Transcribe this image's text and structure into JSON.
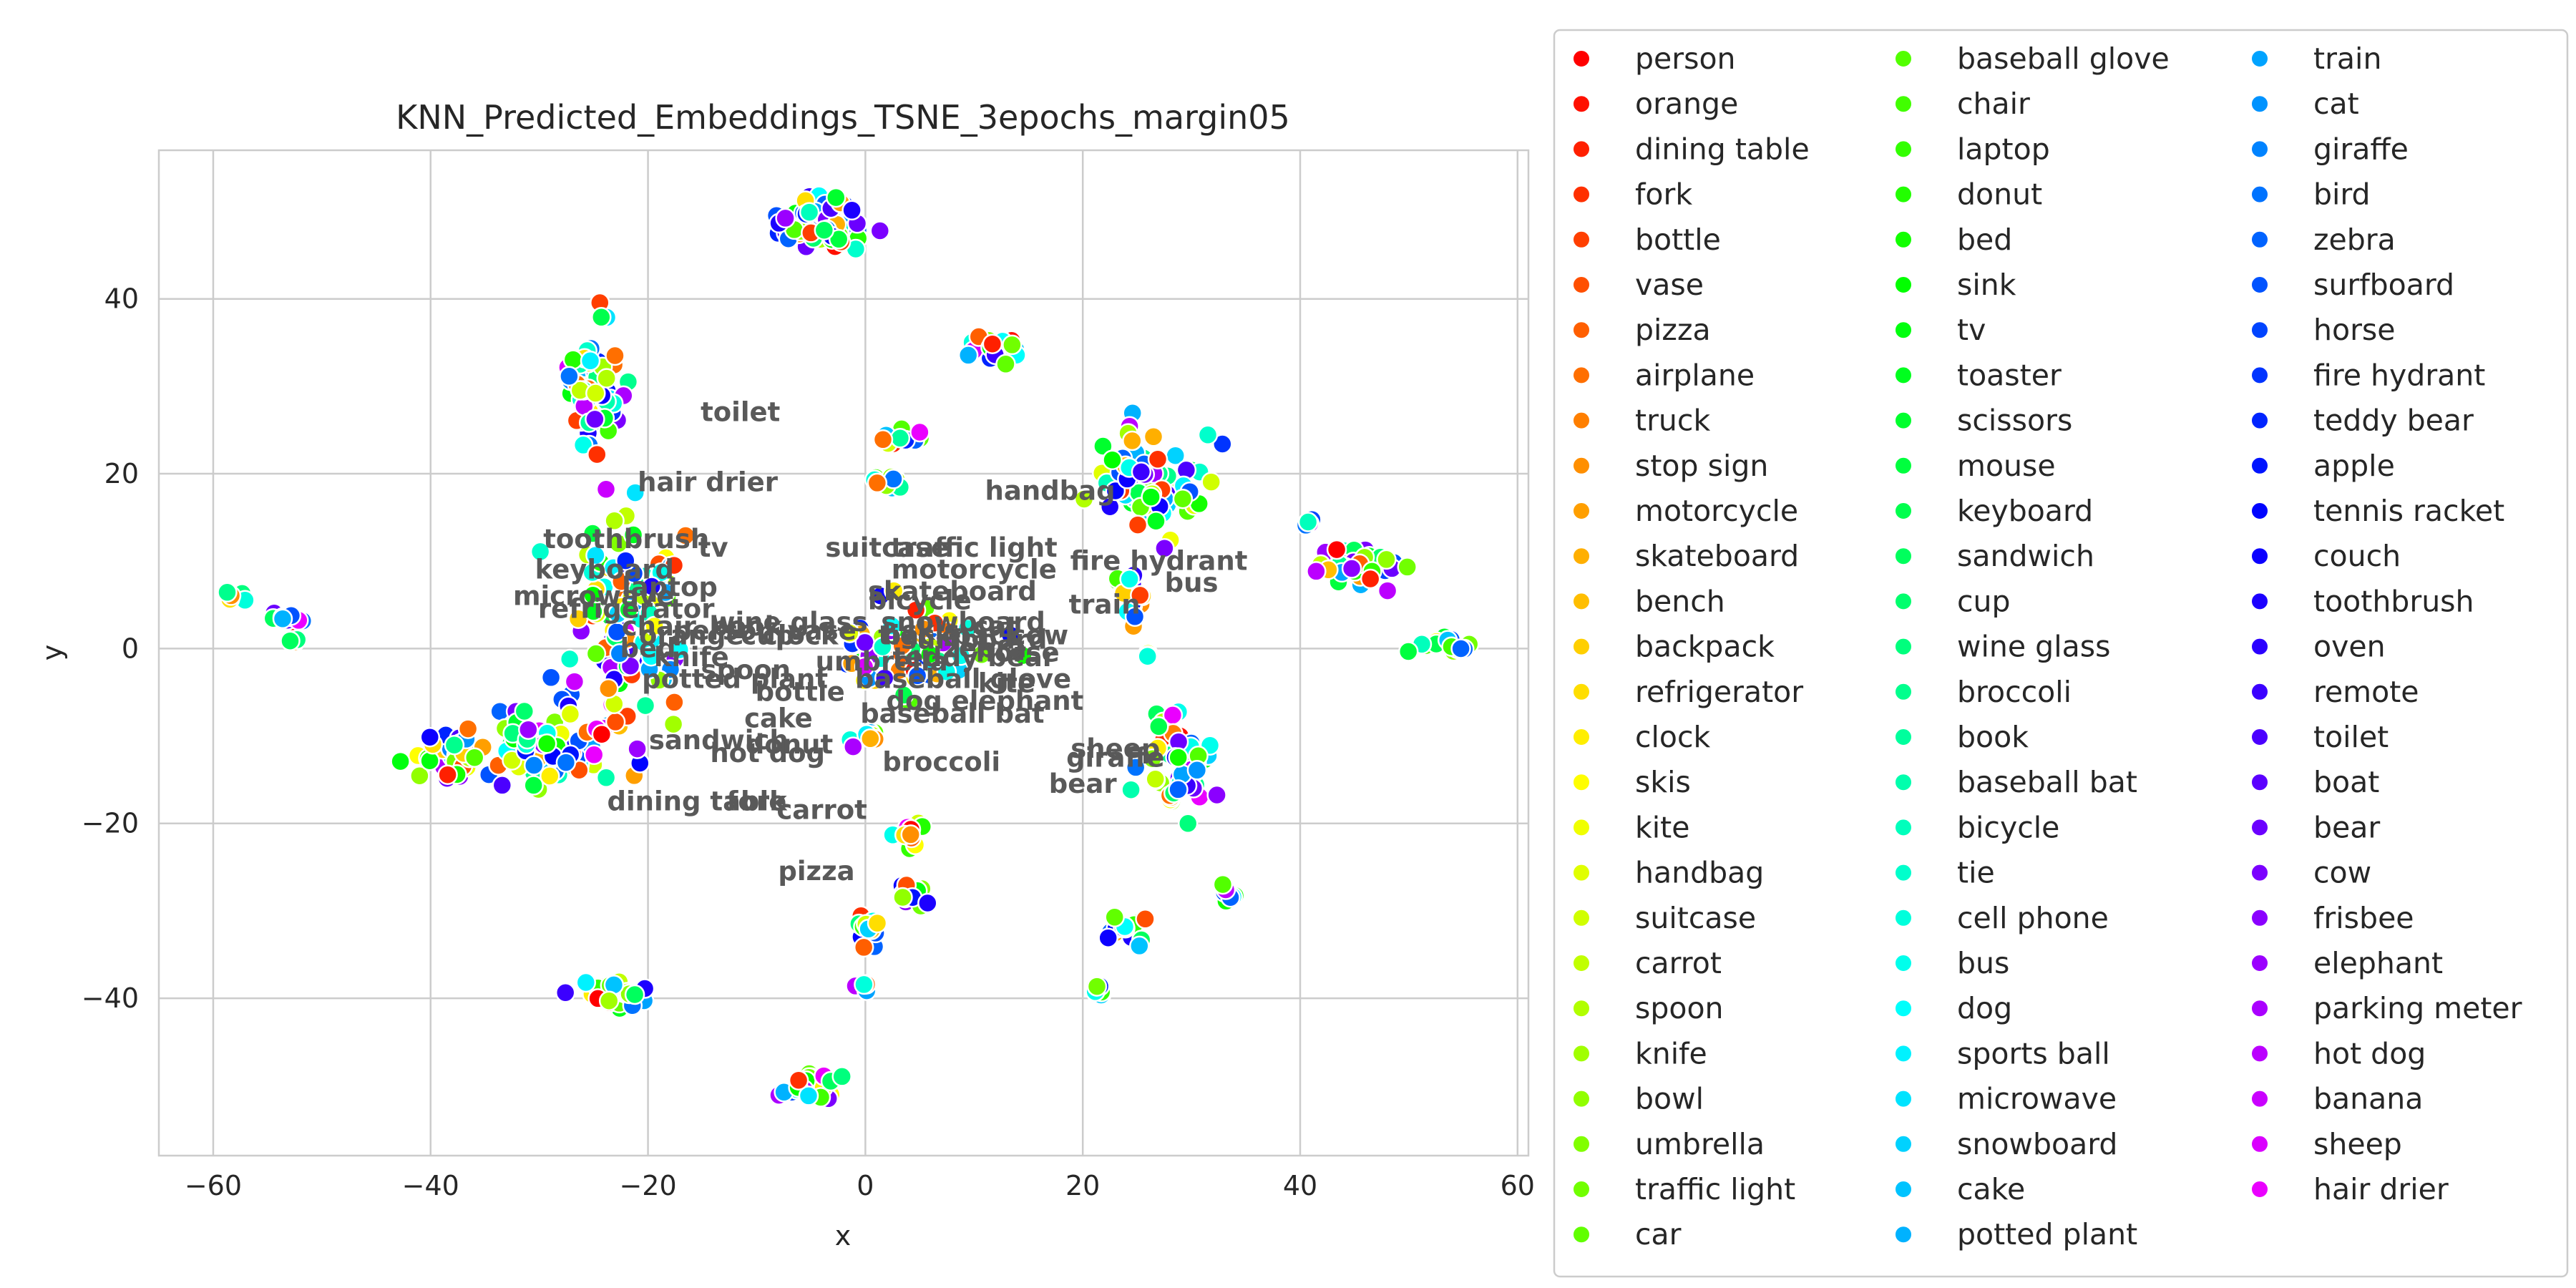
{
  "chart_data": {
    "type": "scatter",
    "title": "KNN_Predicted_Embeddings_TSNE_3epochs_margin05",
    "xlabel": "x",
    "ylabel": "y",
    "xlim": [
      -65,
      61
    ],
    "ylim": [
      -58,
      57
    ],
    "xticks": [
      -60,
      -40,
      -20,
      0,
      20,
      40,
      60
    ],
    "yticks": [
      -40,
      -20,
      0,
      20,
      40
    ],
    "grid": true,
    "legend_position": "right, outside plot, 3 columns",
    "categories": [
      "person",
      "orange",
      "dining table",
      "fork",
      "bottle",
      "vase",
      "pizza",
      "airplane",
      "truck",
      "stop sign",
      "motorcycle",
      "skateboard",
      "bench",
      "backpack",
      "refrigerator",
      "clock",
      "skis",
      "kite",
      "handbag",
      "suitcase",
      "carrot",
      "spoon",
      "knife",
      "bowl",
      "umbrella",
      "traffic light",
      "car",
      "baseball glove",
      "chair",
      "laptop",
      "donut",
      "bed",
      "sink",
      "tv",
      "toaster",
      "scissors",
      "mouse",
      "keyboard",
      "sandwich",
      "cup",
      "wine glass",
      "broccoli",
      "book",
      "baseball bat",
      "bicycle",
      "tie",
      "cell phone",
      "bus",
      "dog",
      "sports ball",
      "microwave",
      "snowboard",
      "cake",
      "potted plant",
      "train",
      "cat",
      "giraffe",
      "bird",
      "zebra",
      "surfboard",
      "horse",
      "fire hydrant",
      "teddy bear",
      "apple",
      "tennis racket",
      "couch",
      "toothbrush",
      "oven",
      "remote",
      "toilet",
      "boat",
      "bear",
      "cow",
      "frisbee",
      "elephant",
      "parking meter",
      "hot dog",
      "banana",
      "sheep",
      "hair drier"
    ],
    "clusters": [
      {
        "x": -4,
        "y": 49,
        "rx": 3.5,
        "ry": 3,
        "n": 70
      },
      {
        "x": -25,
        "y": 30,
        "rx": 2.5,
        "ry": 6,
        "n": 70
      },
      {
        "x": -58,
        "y": 6,
        "rx": 1.2,
        "ry": 0.6,
        "n": 8
      },
      {
        "x": -53,
        "y": 3.5,
        "rx": 1.8,
        "ry": 0.9,
        "n": 14
      },
      {
        "x": -52.5,
        "y": 1,
        "rx": 0.5,
        "ry": 0.5,
        "n": 3
      },
      {
        "x": -38,
        "y": -12,
        "rx": 3.5,
        "ry": 2,
        "n": 40
      },
      {
        "x": -28,
        "y": -11,
        "rx": 5,
        "ry": 4,
        "n": 90
      },
      {
        "x": -22,
        "y": 3,
        "rx": 5,
        "ry": 10,
        "n": 110
      },
      {
        "x": 4,
        "y": 0,
        "rx": 6,
        "ry": 4,
        "n": 70
      },
      {
        "x": 3,
        "y": 24,
        "rx": 2.5,
        "ry": 1,
        "n": 12
      },
      {
        "x": 2,
        "y": 19,
        "rx": 1.5,
        "ry": 1,
        "n": 10
      },
      {
        "x": 12,
        "y": 34.5,
        "rx": 1.8,
        "ry": 1.5,
        "n": 18
      },
      {
        "x": 26,
        "y": 19,
        "rx": 4,
        "ry": 5,
        "n": 80
      },
      {
        "x": 24.5,
        "y": 6,
        "rx": 1.5,
        "ry": 3,
        "n": 18
      },
      {
        "x": 28.5,
        "y": -13,
        "rx": 3,
        "ry": 5,
        "n": 60
      },
      {
        "x": 46,
        "y": 9.5,
        "rx": 4,
        "ry": 2,
        "n": 45
      },
      {
        "x": 53,
        "y": 0.5,
        "rx": 2.5,
        "ry": 1.2,
        "n": 16
      },
      {
        "x": 40.5,
        "y": 14.5,
        "rx": 1,
        "ry": 0.6,
        "n": 4
      },
      {
        "x": 4,
        "y": -21,
        "rx": 1.5,
        "ry": 1.5,
        "n": 14
      },
      {
        "x": 4,
        "y": -28,
        "rx": 2,
        "ry": 1.5,
        "n": 16
      },
      {
        "x": 0,
        "y": -32,
        "rx": 1.5,
        "ry": 1.5,
        "n": 16
      },
      {
        "x": 0,
        "y": -38.5,
        "rx": 0.6,
        "ry": 0.6,
        "n": 4
      },
      {
        "x": -5,
        "y": -50,
        "rx": 2.5,
        "ry": 1.5,
        "n": 25
      },
      {
        "x": -23,
        "y": -39.5,
        "rx": 3,
        "ry": 1.5,
        "n": 30
      },
      {
        "x": 24,
        "y": -32,
        "rx": 2,
        "ry": 1.5,
        "n": 16
      },
      {
        "x": 21,
        "y": -39,
        "rx": 0.8,
        "ry": 0.6,
        "n": 6
      },
      {
        "x": 33.5,
        "y": -28,
        "rx": 1,
        "ry": 1,
        "n": 7
      },
      {
        "x": 0,
        "y": -10,
        "rx": 1.2,
        "ry": 1.5,
        "n": 8
      },
      {
        "x": 26,
        "y": -1,
        "rx": 0.6,
        "ry": 0.5,
        "n": 3
      }
    ],
    "annotations": [
      {
        "text": "toilet",
        "x": -11.5,
        "y": 26
      },
      {
        "text": "hair drier",
        "x": -14.5,
        "y": 18
      },
      {
        "text": "handbag",
        "x": 17,
        "y": 17
      },
      {
        "text": "toothbrush",
        "x": -22,
        "y": 11.5
      },
      {
        "text": "tv",
        "x": -14,
        "y": 10.5
      },
      {
        "text": "keyboard",
        "x": -24,
        "y": 8
      },
      {
        "text": "laptop",
        "x": -18,
        "y": 6
      },
      {
        "text": "microwave",
        "x": -25,
        "y": 5
      },
      {
        "text": "refrigerator",
        "x": -22,
        "y": 3.5
      },
      {
        "text": "suitcase",
        "x": 2,
        "y": 10.5
      },
      {
        "text": "traffic light",
        "x": 10,
        "y": 10.5
      },
      {
        "text": "fire hydrant",
        "x": 27,
        "y": 9
      },
      {
        "text": "motorcycle",
        "x": 10,
        "y": 8
      },
      {
        "text": "bus",
        "x": 30,
        "y": 6.5
      },
      {
        "text": "skateboard",
        "x": 8,
        "y": 5.5
      },
      {
        "text": "train",
        "x": 22,
        "y": 4
      },
      {
        "text": "bicycle",
        "x": 5,
        "y": 4.5
      },
      {
        "text": "wine glass",
        "x": -7,
        "y": 2
      },
      {
        "text": "umbrella",
        "x": 1.5,
        "y": -2.5
      },
      {
        "text": "snowboard",
        "x": 9,
        "y": 2
      },
      {
        "text": "surfboard",
        "x": 10,
        "y": 0
      },
      {
        "text": "bed",
        "x": -20,
        "y": -1
      },
      {
        "text": "knife",
        "x": -16,
        "y": -2
      },
      {
        "text": "spoon",
        "x": -11,
        "y": -3.5
      },
      {
        "text": "potted plant",
        "x": -12,
        "y": -4.5
      },
      {
        "text": "baseball glove",
        "x": 9,
        "y": -4.5
      },
      {
        "text": "bottle",
        "x": -6,
        "y": -6
      },
      {
        "text": "dog",
        "x": 4.5,
        "y": -7
      },
      {
        "text": "elephant",
        "x": 14,
        "y": -7
      },
      {
        "text": "cake",
        "x": -8,
        "y": -9
      },
      {
        "text": "baseball bat",
        "x": 8,
        "y": -8.5
      },
      {
        "text": "sandwich",
        "x": -13.5,
        "y": -11.5
      },
      {
        "text": "hot dog",
        "x": -9,
        "y": -13
      },
      {
        "text": "donut",
        "x": -7,
        "y": -12
      },
      {
        "text": "sheep",
        "x": 23,
        "y": -12.5
      },
      {
        "text": "giraffe",
        "x": 23,
        "y": -13.5
      },
      {
        "text": "broccoli",
        "x": 7,
        "y": -14
      },
      {
        "text": "bear",
        "x": 20,
        "y": -16.5
      },
      {
        "text": "dining table",
        "x": -15.5,
        "y": -18.5
      },
      {
        "text": "fork",
        "x": -10,
        "y": -18.5
      },
      {
        "text": "carrot",
        "x": -4,
        "y": -19.5
      },
      {
        "text": "pizza",
        "x": -4.5,
        "y": -26.5
      },
      {
        "text": "person",
        "x": -13,
        "y": 1
      },
      {
        "text": "orange",
        "x": -16,
        "y": 0.5
      },
      {
        "text": "chair",
        "x": -19,
        "y": 1.5
      },
      {
        "text": "book",
        "x": -11,
        "y": 1.5
      },
      {
        "text": "cup",
        "x": -9,
        "y": 0.5
      },
      {
        "text": "clock",
        "x": -6,
        "y": 0.5
      },
      {
        "text": "vase",
        "x": -4,
        "y": 1
      },
      {
        "text": "teddy bear",
        "x": 10,
        "y": -2
      },
      {
        "text": "cow",
        "x": 16,
        "y": 0.5
      },
      {
        "text": "horse",
        "x": 14,
        "y": -1.5
      },
      {
        "text": "zebra",
        "x": 11,
        "y": -1
      },
      {
        "text": "cat",
        "x": 12,
        "y": 1.5
      },
      {
        "text": "kite",
        "x": 13,
        "y": -5
      },
      {
        "text": "tie",
        "x": 3,
        "y": 0.5
      },
      {
        "text": "skis",
        "x": 6,
        "y": 1
      },
      {
        "text": "backpack",
        "x": 8,
        "y": 0.5
      }
    ]
  }
}
